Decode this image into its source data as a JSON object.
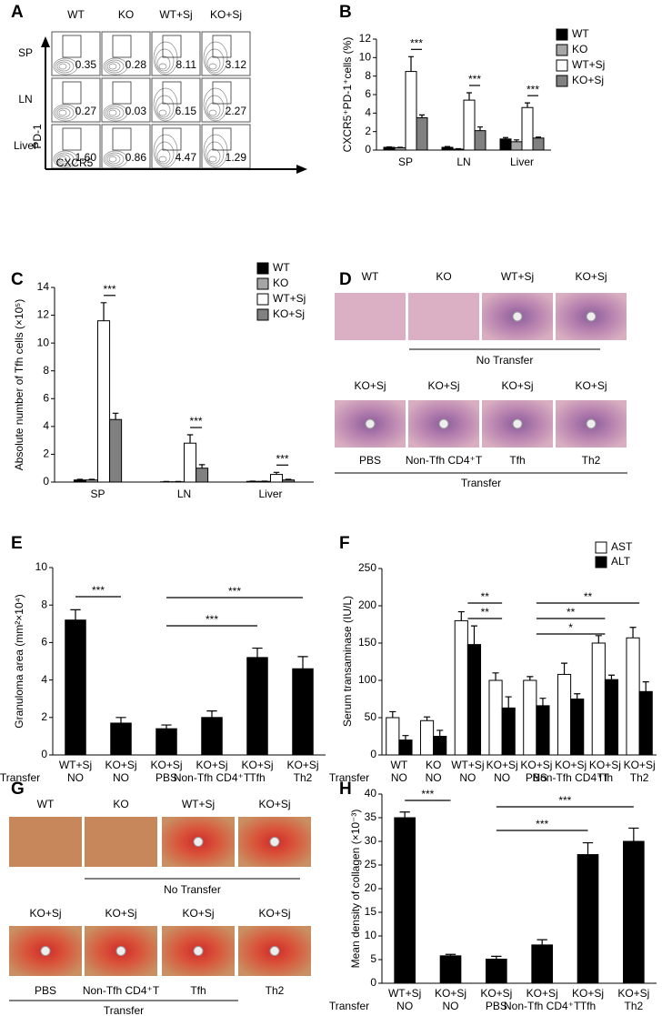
{
  "panel_labels": [
    "A",
    "B",
    "C",
    "D",
    "E",
    "F",
    "G",
    "H"
  ],
  "flow": {
    "columns": [
      "WT",
      "KO",
      "WT+Sj",
      "KO+Sj"
    ],
    "rows": [
      "SP",
      "LN",
      "Liver"
    ],
    "percentages": [
      [
        "0.35",
        "0.28",
        "8.11",
        "3.12"
      ],
      [
        "0.27",
        "0.03",
        "6.15",
        "2.27"
      ],
      [
        "1.60",
        "0.86",
        "4.47",
        "1.29"
      ]
    ],
    "y_label": "PD-1",
    "x_label": "CXCR5"
  },
  "histology_d": {
    "top_labels": [
      "WT",
      "KO",
      "WT+Sj",
      "KO+Sj"
    ],
    "top_caption": "No Transfer",
    "bottom_labels": [
      "KO+Sj",
      "KO+Sj",
      "KO+Sj",
      "KO+Sj"
    ],
    "bottom_captions": [
      "PBS",
      "Non-Tfh CD4⁺T",
      "Tfh",
      "Th2"
    ],
    "bottom_caption": "Transfer"
  },
  "histology_g": {
    "top_labels": [
      "WT",
      "KO",
      "WT+Sj",
      "KO+Sj"
    ],
    "top_caption": "No Transfer",
    "bottom_labels": [
      "KO+Sj",
      "KO+Sj",
      "KO+Sj",
      "KO+Sj"
    ],
    "bottom_captions": [
      "PBS",
      "Non-Tfh CD4⁺T",
      "Tfh",
      "Th2"
    ],
    "bottom_caption": "Transfer"
  },
  "chart_data": [
    {
      "type": "bar",
      "y_label": "CXCR5⁺PD-1⁺cells (%)",
      "categories": [
        "SP",
        "LN",
        "Liver"
      ],
      "series": [
        {
          "name": "WT",
          "color": "#000000",
          "values": [
            0.3,
            0.3,
            1.2
          ],
          "errors": [
            0.05,
            0.08,
            0.15
          ]
        },
        {
          "name": "KO",
          "color": "#a6a6a6",
          "values": [
            0.25,
            0.1,
            0.9
          ],
          "errors": [
            0.05,
            0.05,
            0.2
          ]
        },
        {
          "name": "WT+Sj",
          "color": "#ffffff",
          "values": [
            8.5,
            5.4,
            4.6
          ],
          "errors": [
            1.6,
            0.8,
            0.5
          ]
        },
        {
          "name": "KO+Sj",
          "color": "#808080",
          "values": [
            3.5,
            2.1,
            1.3
          ],
          "errors": [
            0.3,
            0.4,
            0.1
          ]
        }
      ],
      "ylim": [
        0,
        12
      ],
      "yticks": [
        0,
        2,
        4,
        6,
        8,
        10,
        12
      ],
      "legend": "upper right",
      "annotations": [
        "***",
        "***",
        "***"
      ]
    },
    {
      "type": "bar",
      "y_label": "Absolute number of Tfh cells (×10⁵)",
      "categories": [
        "SP",
        "LN",
        "Liver"
      ],
      "series": [
        {
          "name": "WT",
          "color": "#000000",
          "values": [
            0.15,
            0.02,
            0.05
          ],
          "errors": [
            0.05,
            0.02,
            0.02
          ]
        },
        {
          "name": "KO",
          "color": "#a6a6a6",
          "values": [
            0.15,
            0.02,
            0.05
          ],
          "errors": [
            0.05,
            0.02,
            0.02
          ]
        },
        {
          "name": "WT+Sj",
          "color": "#ffffff",
          "values": [
            11.6,
            2.8,
            0.55
          ],
          "errors": [
            1.3,
            0.6,
            0.15
          ]
        },
        {
          "name": "KO+Sj",
          "color": "#808080",
          "values": [
            4.5,
            1.0,
            0.15
          ],
          "errors": [
            0.45,
            0.25,
            0.05
          ]
        }
      ],
      "ylim": [
        0,
        14
      ],
      "yticks": [
        0,
        2,
        4,
        6,
        8,
        10,
        12,
        14
      ],
      "legend": "upper right",
      "annotations": [
        "***",
        "***",
        "***"
      ]
    },
    {
      "type": "bar",
      "y_label": "Granuloma area (mm²×10⁴)",
      "row_label": "Transfer",
      "categories": [
        "WT+Sj",
        "KO+Sj",
        "KO+Sj",
        "KO+Sj",
        "KO+Sj",
        "KO+Sj"
      ],
      "subcategories": [
        "NO",
        "NO",
        "PBS",
        "Non-Tfh CD4⁺T",
        "Tfh",
        "Th2"
      ],
      "values": [
        7.2,
        1.7,
        1.4,
        2.0,
        5.2,
        4.6
      ],
      "errors": [
        0.55,
        0.3,
        0.2,
        0.35,
        0.5,
        0.65
      ],
      "color": "#000000",
      "ylim": [
        0,
        10
      ],
      "yticks": [
        0,
        2,
        4,
        6,
        8,
        10
      ],
      "annotations": [
        "***",
        "***",
        "***"
      ]
    },
    {
      "type": "bar",
      "y_label": "Serum transaminase (IU/L)",
      "row_label": "Transfer",
      "categories": [
        "WT",
        "KO",
        "WT+Sj",
        "KO+Sj",
        "KO+Sj",
        "KO+Sj",
        "KO+Sj",
        "KO+Sj"
      ],
      "subcategories": [
        "NO",
        "NO",
        "NO",
        "NO",
        "PBS",
        "Non-Tfh CD4⁺T",
        "Tfh",
        "Th2"
      ],
      "series": [
        {
          "name": "AST",
          "color": "#ffffff",
          "values": [
            50,
            46,
            180,
            100,
            100,
            108,
            150,
            157
          ],
          "errors": [
            8,
            5,
            12,
            10,
            5,
            15,
            10,
            14
          ]
        },
        {
          "name": "ALT",
          "color": "#000000",
          "values": [
            20,
            25,
            148,
            63,
            66,
            75,
            101,
            85
          ],
          "errors": [
            6,
            8,
            25,
            15,
            10,
            7,
            6,
            13
          ]
        }
      ],
      "ylim": [
        0,
        250
      ],
      "yticks": [
        0,
        50,
        100,
        150,
        200,
        250
      ],
      "legend": "upper right",
      "annotations": [
        "**",
        "**",
        "**",
        "**",
        "*"
      ]
    },
    {
      "type": "bar",
      "y_label": "Mean density of collagen (×10⁻³)",
      "row_label": "Transfer",
      "categories": [
        "WT+Sj",
        "KO+Sj",
        "KO+Sj",
        "KO+Sj",
        "KO+Sj",
        "KO+Sj"
      ],
      "subcategories": [
        "NO",
        "NO",
        "PBS",
        "Non-Tfh CD4⁺T",
        "Tfh",
        "Th2"
      ],
      "values": [
        35,
        5.8,
        5.1,
        8.1,
        27.2,
        30
      ],
      "errors": [
        1.2,
        0.3,
        0.6,
        1.1,
        2.5,
        2.8
      ],
      "color": "#000000",
      "ylim": [
        0,
        40
      ],
      "yticks": [
        0,
        5,
        10,
        15,
        20,
        25,
        30,
        35,
        40
      ],
      "annotations": [
        "***",
        "***",
        "***"
      ]
    }
  ]
}
